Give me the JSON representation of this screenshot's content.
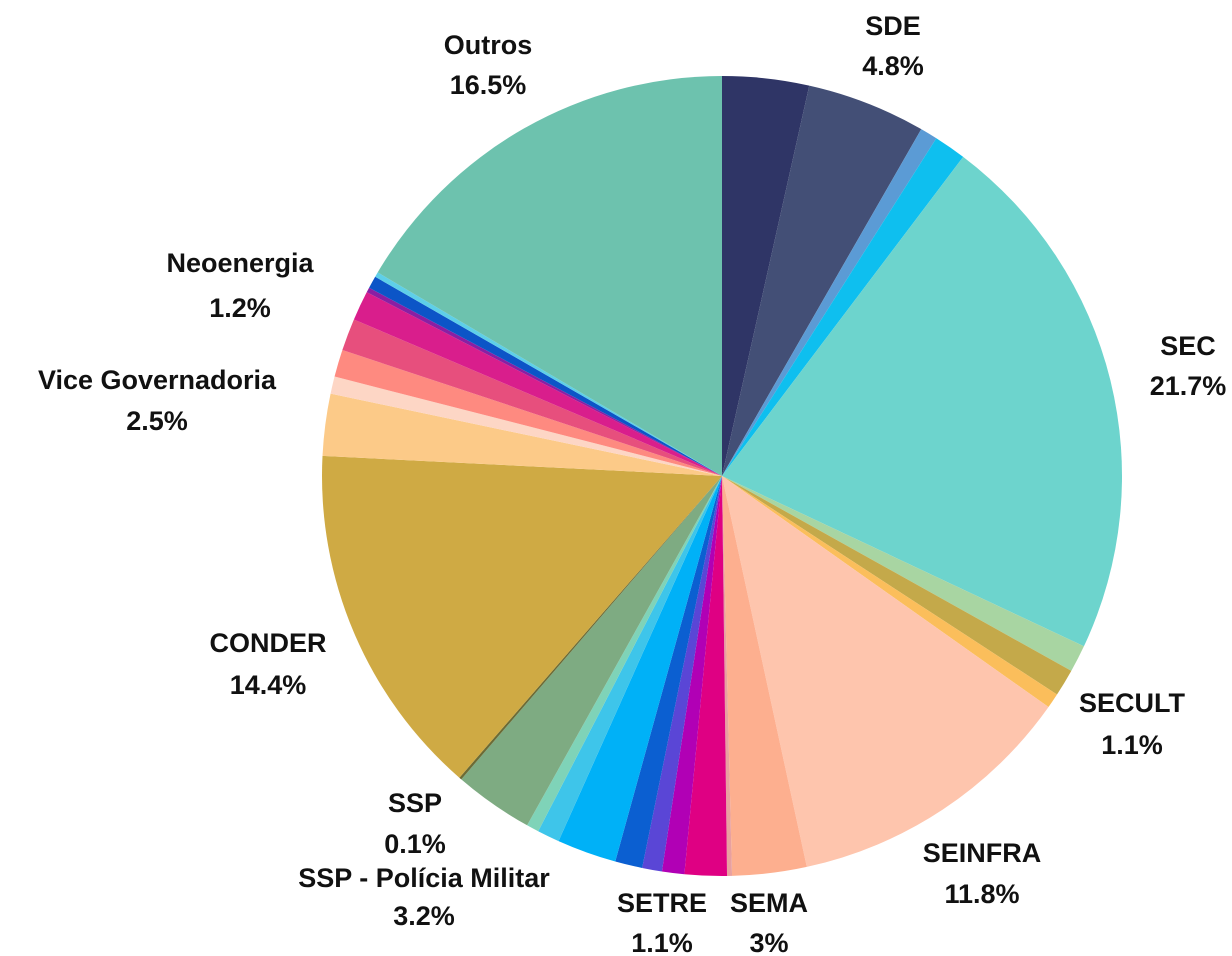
{
  "chart_data": {
    "type": "pie",
    "categories": [
      null,
      "SDE",
      null,
      null,
      "SEC",
      null,
      "SECULT",
      null,
      "SEINFRA",
      "SEMA",
      null,
      null,
      null,
      null,
      "SETRE",
      null,
      null,
      null,
      "SSP - Polícia Militar",
      "SSP",
      "CONDER",
      "Vice Governadoria",
      null,
      null,
      null,
      "Neoenergia",
      null,
      null,
      null,
      "Outros"
    ],
    "values": [
      3.5,
      4.8,
      0.7,
      1.3,
      21.7,
      1.1,
      1.1,
      0.6,
      11.8,
      3,
      0.2,
      1.7,
      0.9,
      0.8,
      1.1,
      2.4,
      0.9,
      0.5,
      3.2,
      0.1,
      14.4,
      2.5,
      0.7,
      1.1,
      1.3,
      1.2,
      0.2,
      0.5,
      0.2,
      16.5
    ],
    "value_labels": [
      null,
      "4.8%",
      null,
      null,
      "21.7%",
      null,
      "1.1%",
      null,
      "11.8%",
      "3%",
      null,
      null,
      null,
      null,
      "1.1%",
      null,
      null,
      null,
      "3.2%",
      "0.1%",
      "14.4%",
      "2.5%",
      null,
      null,
      null,
      "1.2%",
      null,
      null,
      null,
      "16.5%"
    ],
    "colors": [
      "#2f3566",
      "#434f76",
      "#5b9bd5",
      "#0ebfef",
      "#6dd4cd",
      "#a8d5a2",
      "#c4a94a",
      "#fbbe5b",
      "#fec5ad",
      "#fdaf8f",
      "#e8a0a0",
      "#df0083",
      "#b100b5",
      "#5a46d6",
      "#0b5fd1",
      "#00b1f7",
      "#3ec5ea",
      "#7fd3b8",
      "#7eab82",
      "#6b6b35",
      "#cfaa44",
      "#fcca88",
      "#fdd6c5",
      "#fe8a80",
      "#e74f7d",
      "#d91e8c",
      "#8a1fa3",
      "#0c55c7",
      "#5ecfe8",
      "#6dc2ae"
    ]
  }
}
